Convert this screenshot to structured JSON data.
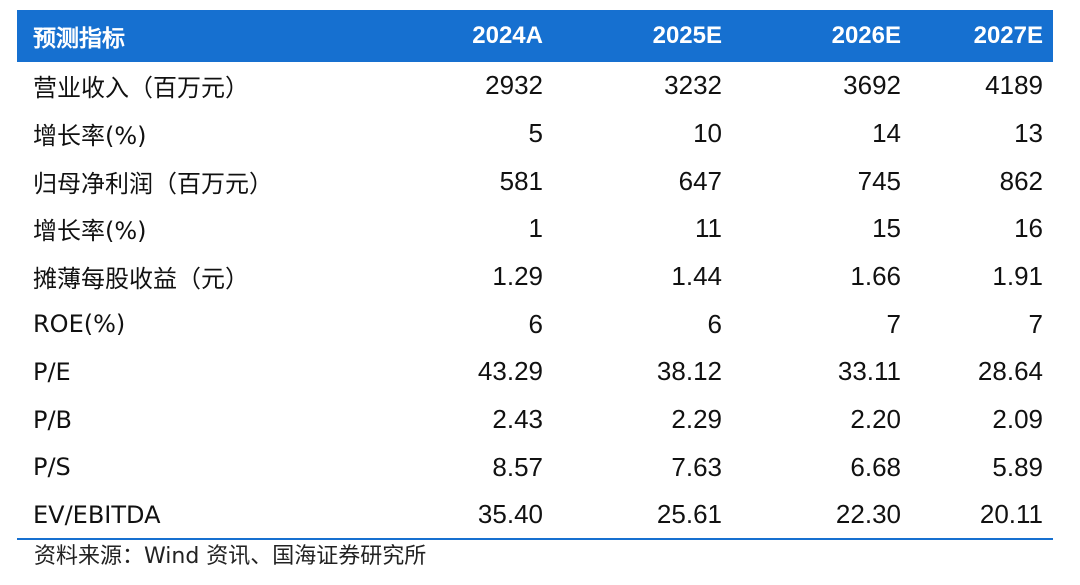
{
  "table": {
    "headers": [
      "预测指标",
      "2024A",
      "2025E",
      "2026E",
      "2027E"
    ],
    "rows": [
      {
        "label": "营业收入（百万元）",
        "values": [
          "2932",
          "3232",
          "3692",
          "4189"
        ]
      },
      {
        "label": "增长率(%)",
        "values": [
          "5",
          "10",
          "14",
          "13"
        ]
      },
      {
        "label": "归母净利润（百万元）",
        "values": [
          "581",
          "647",
          "745",
          "862"
        ]
      },
      {
        "label": "增长率(%)",
        "values": [
          "1",
          "11",
          "15",
          "16"
        ]
      },
      {
        "label": "摊薄每股收益（元）",
        "values": [
          "1.29",
          "1.44",
          "1.66",
          "1.91"
        ]
      },
      {
        "label": "ROE(%)",
        "values": [
          "6",
          "6",
          "7",
          "7"
        ]
      },
      {
        "label": "P/E",
        "values": [
          "43.29",
          "38.12",
          "33.11",
          "28.64"
        ]
      },
      {
        "label": "P/B",
        "values": [
          "2.43",
          "2.29",
          "2.20",
          "2.09"
        ]
      },
      {
        "label": "P/S",
        "values": [
          "8.57",
          "7.63",
          "6.68",
          "5.89"
        ]
      },
      {
        "label": "EV/EBITDA",
        "values": [
          "35.40",
          "25.61",
          "22.30",
          "20.11"
        ]
      }
    ]
  },
  "source": "资料来源：Wind 资讯、国海证券研究所",
  "colors": {
    "header_bg": "#1670d0",
    "header_text": "#ffffff",
    "rule": "#1670d0"
  }
}
